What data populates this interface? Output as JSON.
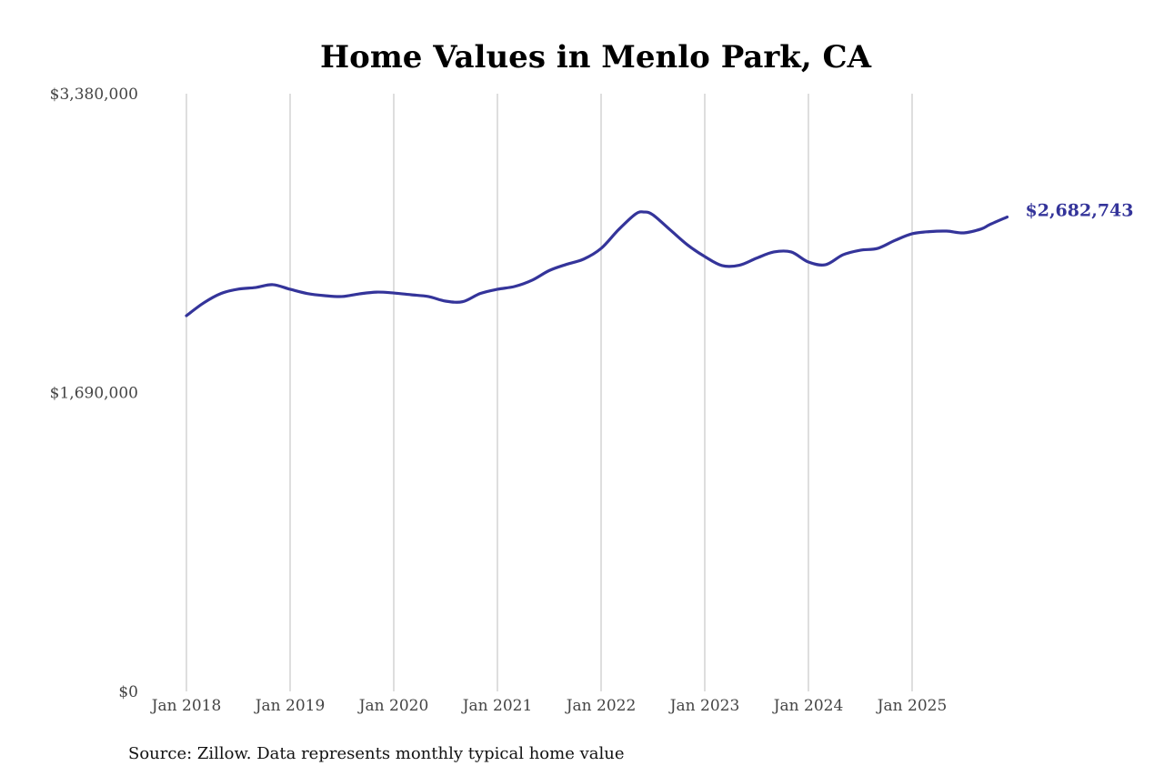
{
  "chart_data": {
    "type": "line",
    "title": "Home Values in Menlo Park, CA",
    "xlabel": "",
    "ylabel": "",
    "source": "Source: Zillow. Data represents monthly typical home value",
    "ylim": [
      0,
      3380000
    ],
    "y_ticks": [
      "$0",
      "$1,690,000",
      "$3,380,000"
    ],
    "y_tick_values": [
      0,
      1690000,
      3380000
    ],
    "x_ticks": [
      "Jan 2018",
      "Jan 2019",
      "Jan 2020",
      "Jan 2021",
      "Jan 2022",
      "Jan 2023",
      "Jan 2024",
      "Jan 2025"
    ],
    "x_tick_dates": [
      "2018-01",
      "2019-01",
      "2020-01",
      "2021-01",
      "2022-01",
      "2023-01",
      "2024-01",
      "2025-01"
    ],
    "grid": {
      "vertical": true,
      "horizontal": false
    },
    "end_label": "$2,682,743",
    "line_color": "#34349a",
    "series": [
      {
        "x": [
          "2018-01",
          "2018-03",
          "2018-05",
          "2018-07",
          "2018-09",
          "2018-11",
          "2019-01",
          "2019-03",
          "2019-05",
          "2019-07",
          "2019-09",
          "2019-11",
          "2020-01",
          "2020-03",
          "2020-05",
          "2020-07",
          "2020-09",
          "2020-11",
          "2021-01",
          "2021-03",
          "2021-05",
          "2021-07",
          "2021-09",
          "2021-11",
          "2022-01",
          "2022-03",
          "2022-05",
          "2022-06",
          "2022-07",
          "2022-09",
          "2022-11",
          "2023-01",
          "2023-03",
          "2023-05",
          "2023-07",
          "2023-09",
          "2023-11",
          "2024-01",
          "2024-03",
          "2024-05",
          "2024-07",
          "2024-09",
          "2024-11",
          "2025-01",
          "2025-03",
          "2025-05",
          "2025-07",
          "2025-09",
          "2025-10",
          "2025-12"
        ],
        "values": [
          2124700,
          2197000,
          2250000,
          2275000,
          2284000,
          2300000,
          2274000,
          2250000,
          2238000,
          2233000,
          2248000,
          2258000,
          2253000,
          2243000,
          2233000,
          2207000,
          2204000,
          2250000,
          2274000,
          2290000,
          2325000,
          2380000,
          2415000,
          2445000,
          2505000,
          2610000,
          2700000,
          2711000,
          2695000,
          2610000,
          2525000,
          2459000,
          2408000,
          2410000,
          2450000,
          2485000,
          2485000,
          2428000,
          2413000,
          2469000,
          2495000,
          2505000,
          2550000,
          2588000,
          2600000,
          2603000,
          2593000,
          2615000,
          2640000,
          2682743
        ]
      }
    ]
  }
}
